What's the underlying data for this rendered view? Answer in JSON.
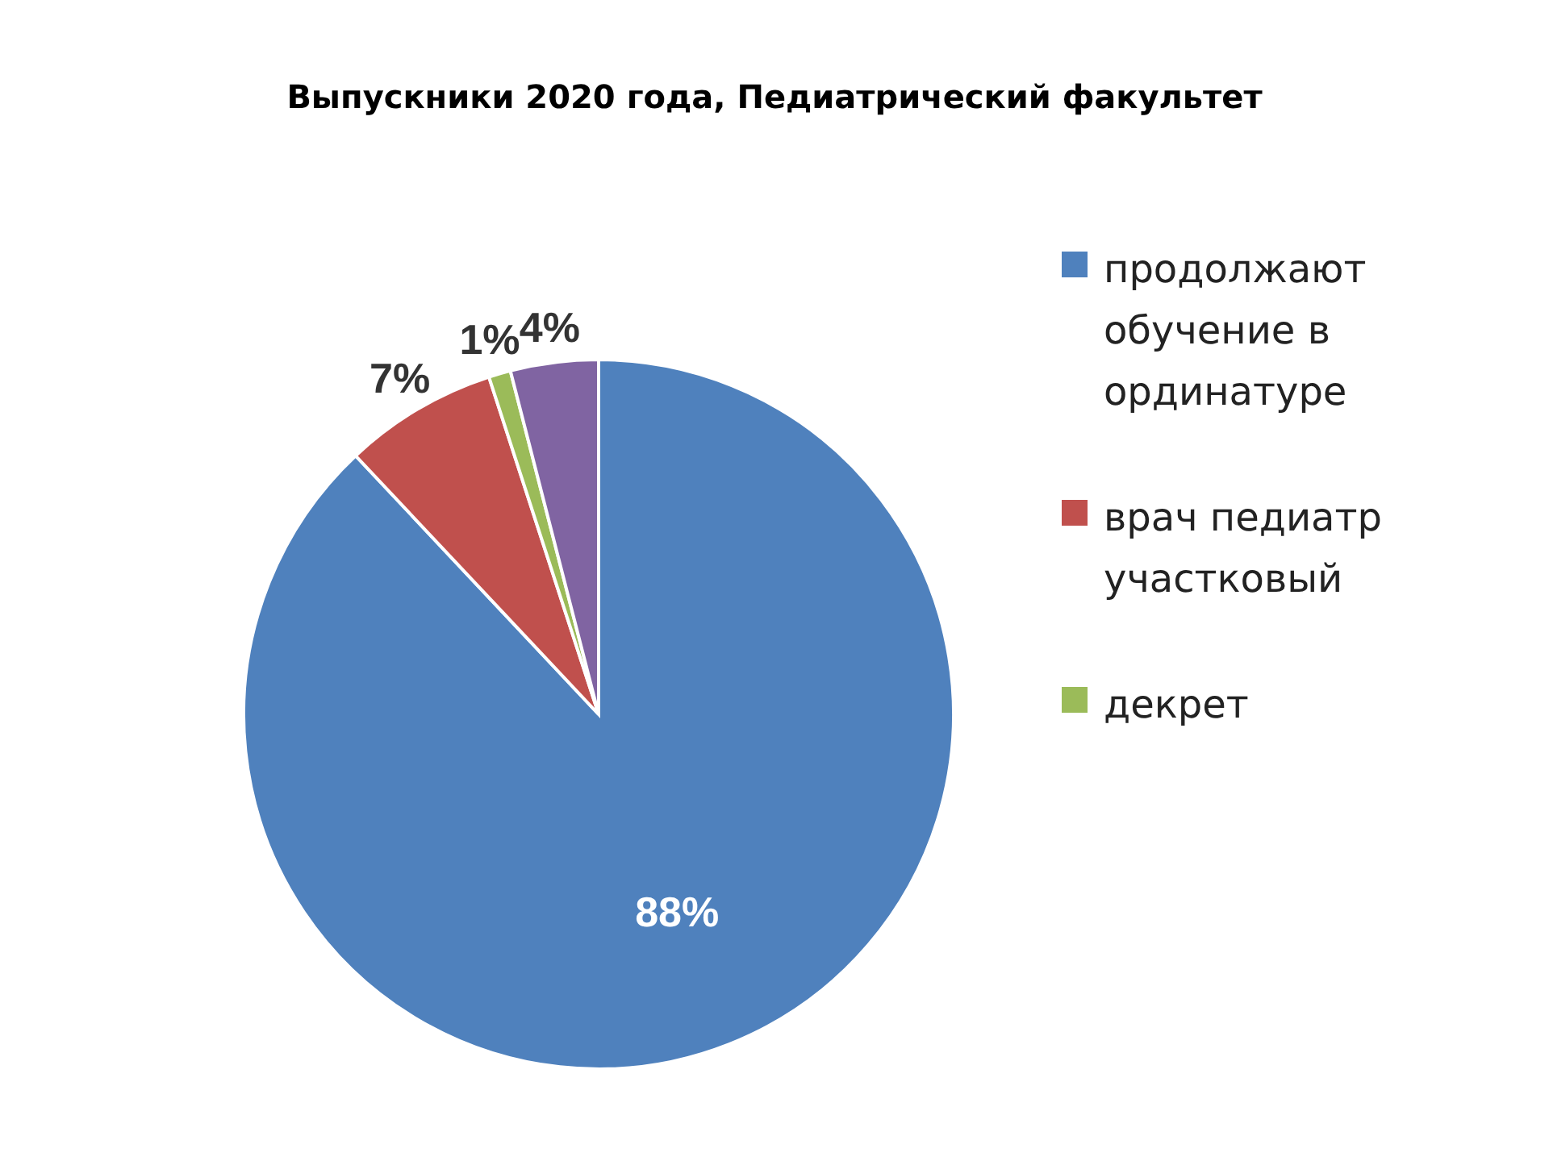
{
  "chart_data": {
    "type": "pie",
    "title": "Выпускники 2020 года, Педиатрический факультет",
    "categories": [
      "продолжают обучение в ординатуре",
      "врач педиатр участковый",
      "декрет",
      null
    ],
    "values": [
      88,
      7,
      1,
      4
    ],
    "colors": [
      "#4f81bd",
      "#c0504d",
      "#9bbb59",
      "#8064a2"
    ],
    "value_labels": [
      "88%",
      "7%",
      "1%",
      "4%"
    ],
    "legend": "right"
  }
}
